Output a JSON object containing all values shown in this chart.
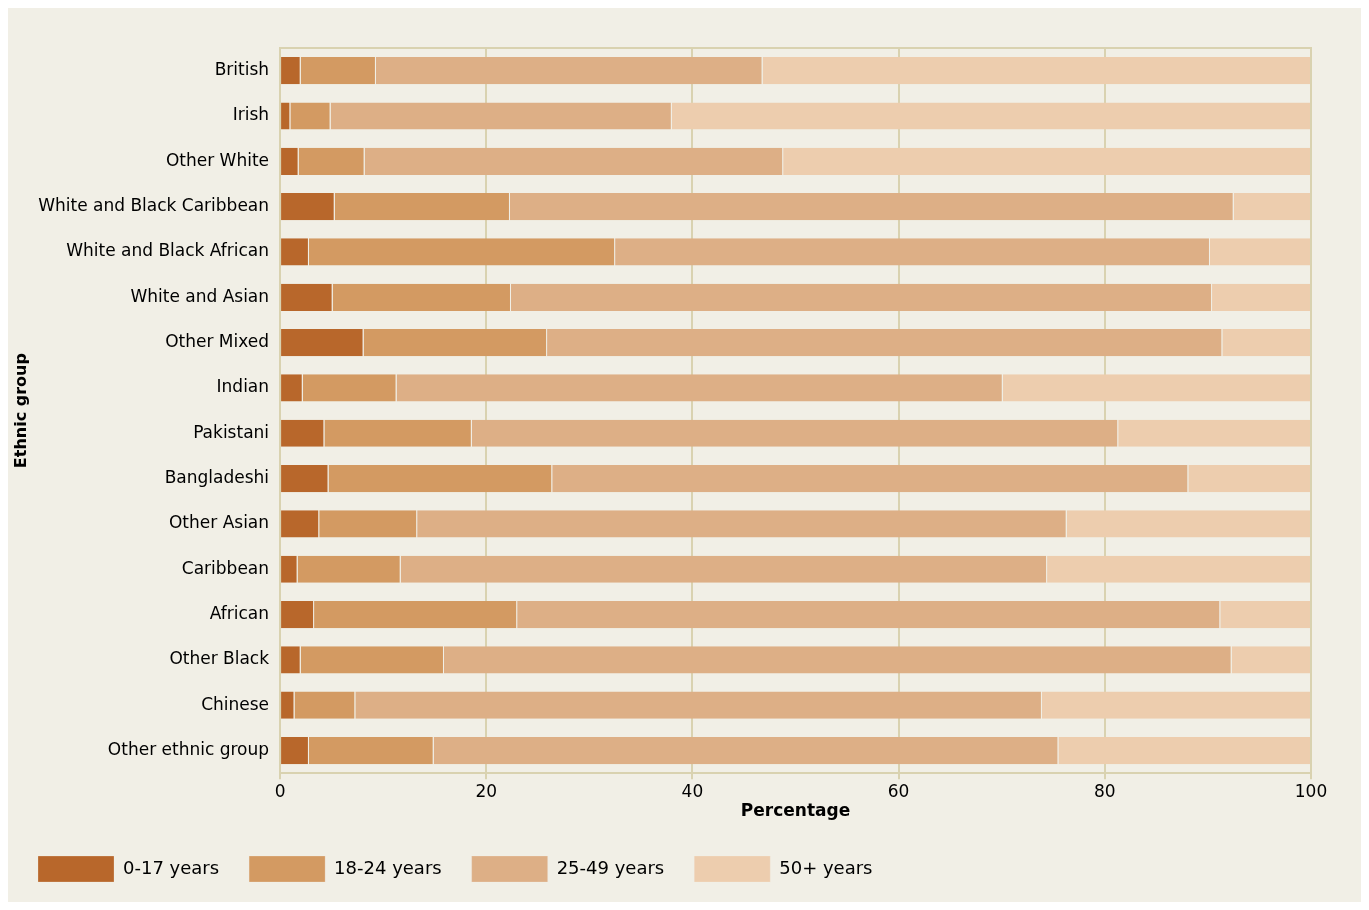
{
  "chart_data": {
    "type": "bar",
    "orientation": "horizontal",
    "stacked": true,
    "xlabel": "Percentage",
    "ylabel": "Ethnic group",
    "xlim": [
      0,
      100
    ],
    "xticks": [
      0,
      20,
      40,
      60,
      80,
      100
    ],
    "grid": "x",
    "legend": "bottom",
    "categories": [
      "British",
      "Irish",
      "Other White",
      "White and Black Caribbean",
      "White and Black African",
      "White and Asian",
      "Other Mixed",
      "Indian",
      "Pakistani",
      "Bangladeshi",
      "Other Asian",
      "Caribbean",
      "African",
      "Other Black",
      "Chinese",
      "Other ethnic group"
    ],
    "series": [
      {
        "name": "0-17 years",
        "color": "#b8672b",
        "values": [
          2.0,
          1.0,
          1.8,
          5.3,
          2.8,
          5.1,
          8.1,
          2.2,
          4.3,
          4.7,
          3.8,
          1.7,
          3.3,
          2.0,
          1.4,
          2.8
        ]
      },
      {
        "name": "18-24 years",
        "color": "#d39a62",
        "values": [
          7.3,
          3.9,
          6.4,
          17.0,
          29.7,
          17.3,
          17.8,
          9.1,
          14.3,
          21.7,
          9.5,
          10.0,
          19.7,
          13.9,
          5.9,
          12.1
        ]
      },
      {
        "name": "25-49 years",
        "color": "#ddaf86",
        "values": [
          37.5,
          33.1,
          40.6,
          70.2,
          57.7,
          68.0,
          65.5,
          58.8,
          62.7,
          61.7,
          63.0,
          62.7,
          68.2,
          76.4,
          66.6,
          60.6
        ]
      },
      {
        "name": "50+ years",
        "color": "#edcdae",
        "values": [
          53.2,
          62.0,
          51.2,
          7.5,
          9.8,
          9.6,
          8.6,
          29.9,
          18.7,
          11.9,
          23.7,
          25.6,
          8.8,
          7.7,
          26.1,
          24.5
        ]
      }
    ]
  }
}
